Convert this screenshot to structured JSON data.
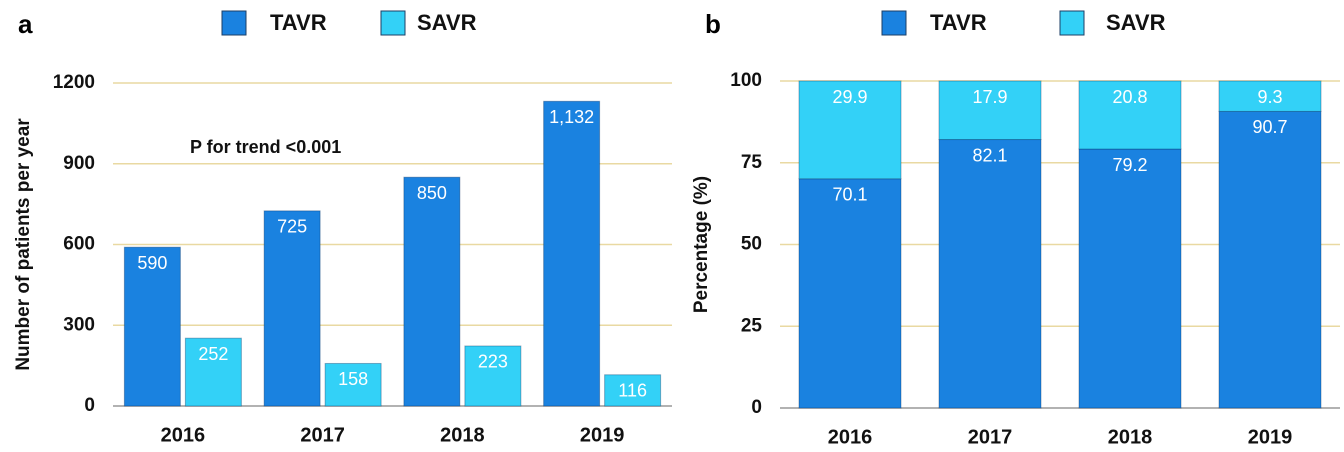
{
  "chart_data": [
    {
      "type": "bar",
      "panel": "a",
      "stacked": false,
      "ylabel": "Number of patients per year",
      "annotation": "P for trend <0.001",
      "categories": [
        "2016",
        "2017",
        "2018",
        "2019"
      ],
      "series": [
        {
          "name": "TAVR",
          "color": "#1a82e0",
          "values": [
            590,
            725,
            850,
            1132
          ],
          "value_labels": [
            "590",
            "725",
            "850",
            "1,132"
          ]
        },
        {
          "name": "SAVR",
          "color": "#33d1f7",
          "values": [
            252,
            158,
            223,
            116
          ]
        }
      ],
      "ylim": [
        0,
        1200
      ],
      "yticks": [
        0,
        300,
        600,
        900,
        1200
      ],
      "grid": true
    },
    {
      "type": "bar",
      "panel": "b",
      "stacked": true,
      "ylabel": "Percentage (%)",
      "categories": [
        "2016",
        "2017",
        "2018",
        "2019"
      ],
      "series": [
        {
          "name": "TAVR",
          "color": "#1a82e0",
          "values": [
            70.1,
            82.1,
            79.2,
            90.7
          ]
        },
        {
          "name": "SAVR",
          "color": "#33d1f7",
          "values": [
            29.9,
            17.9,
            20.8,
            9.3
          ]
        }
      ],
      "ylim": [
        0,
        100
      ],
      "yticks": [
        0,
        25,
        50,
        75,
        100
      ],
      "grid": true
    }
  ]
}
